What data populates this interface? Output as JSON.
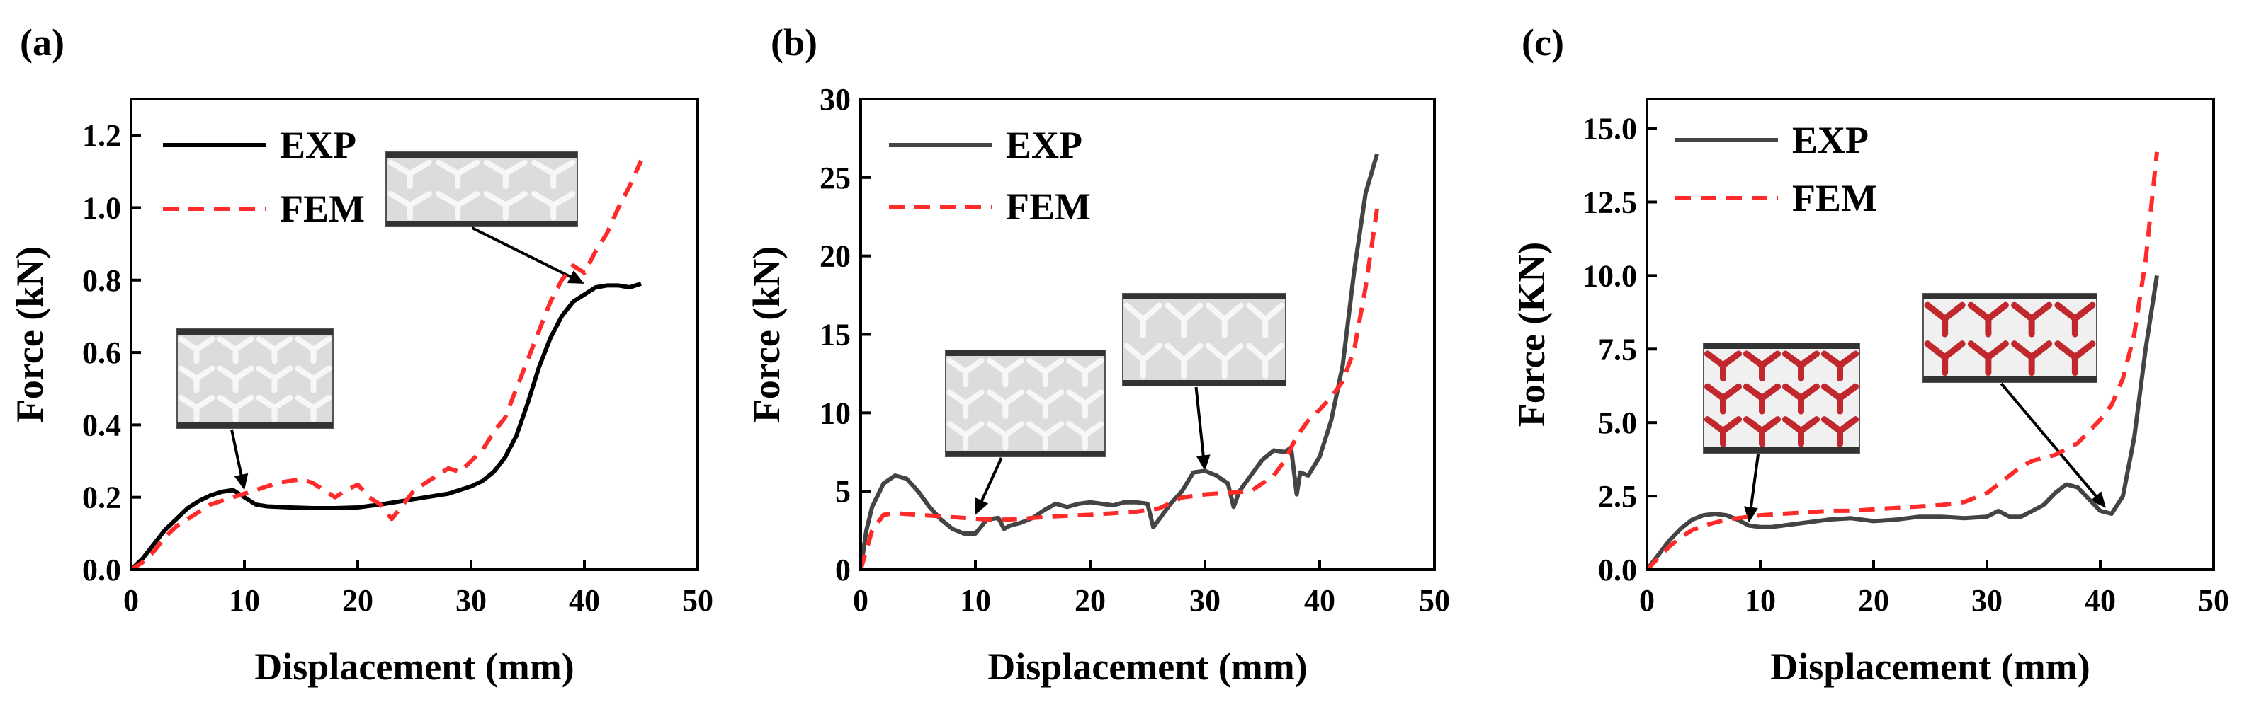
{
  "chart_data": [
    {
      "type": "line",
      "panel_label": "(a)",
      "xlabel": "Displacement (mm)",
      "ylabel": "Force (kN)",
      "xlim": [
        0,
        50
      ],
      "ylim": [
        0,
        1.3
      ],
      "xticks": [
        0,
        10,
        20,
        30,
        40,
        50
      ],
      "yticks": [
        0.0,
        0.2,
        0.4,
        0.6,
        0.8,
        1.0,
        1.2
      ],
      "ytick_labels": [
        "0.0",
        "0.2",
        "0.4",
        "0.6",
        "0.8",
        "1.0",
        "1.2"
      ],
      "legend_position": "top-left",
      "series": [
        {
          "name": "EXP",
          "color": "#000000",
          "dash": "solid",
          "x": [
            0,
            1,
            2,
            3,
            4,
            5,
            6,
            7,
            8,
            9,
            10,
            11,
            12,
            14,
            16,
            18,
            20,
            22,
            24,
            26,
            28,
            30,
            31,
            32,
            33,
            34,
            35,
            36,
            37,
            38,
            39,
            40,
            41,
            42,
            43,
            44,
            45
          ],
          "y": [
            0,
            0.03,
            0.07,
            0.11,
            0.14,
            0.17,
            0.19,
            0.205,
            0.215,
            0.22,
            0.2,
            0.18,
            0.175,
            0.172,
            0.17,
            0.17,
            0.172,
            0.18,
            0.19,
            0.2,
            0.21,
            0.23,
            0.245,
            0.27,
            0.31,
            0.37,
            0.46,
            0.56,
            0.64,
            0.7,
            0.74,
            0.76,
            0.78,
            0.785,
            0.785,
            0.78,
            0.79
          ]
        },
        {
          "name": "FEM",
          "color": "#ff2a2a",
          "dash": "dashed",
          "x": [
            0,
            1,
            2,
            3,
            4,
            5,
            6,
            7,
            8,
            9,
            10,
            11,
            12,
            13,
            14,
            15,
            16,
            17,
            18,
            19,
            20,
            21,
            22,
            23,
            24,
            25,
            26,
            27,
            28,
            29,
            30,
            31,
            32,
            33,
            34,
            35,
            36,
            37,
            38,
            39,
            40,
            41,
            42,
            43,
            44,
            45
          ],
          "y": [
            0,
            0.02,
            0.05,
            0.09,
            0.12,
            0.14,
            0.16,
            0.18,
            0.19,
            0.2,
            0.21,
            0.22,
            0.23,
            0.24,
            0.245,
            0.25,
            0.24,
            0.22,
            0.2,
            0.22,
            0.235,
            0.2,
            0.18,
            0.14,
            0.18,
            0.22,
            0.24,
            0.26,
            0.28,
            0.27,
            0.3,
            0.33,
            0.38,
            0.42,
            0.5,
            0.58,
            0.66,
            0.74,
            0.8,
            0.84,
            0.82,
            0.88,
            0.93,
            1.0,
            1.06,
            1.13
          ]
        }
      ],
      "insets": [
        {
          "description": "deformed lattice specimen",
          "arrow_target": [
            10,
            0.22
          ],
          "style": "white"
        },
        {
          "description": "compressed lattice specimen",
          "arrow_target": [
            40,
            0.79
          ],
          "style": "white"
        }
      ]
    },
    {
      "type": "line",
      "panel_label": "(b)",
      "xlabel": "Displacement (mm)",
      "ylabel": "Force (kN)",
      "xlim": [
        0,
        50
      ],
      "ylim": [
        0,
        30
      ],
      "xticks": [
        0,
        10,
        20,
        30,
        40,
        50
      ],
      "yticks": [
        0,
        5,
        10,
        15,
        20,
        25,
        30
      ],
      "ytick_labels": [
        "0",
        "5",
        "10",
        "15",
        "20",
        "25",
        "30"
      ],
      "legend_position": "top-left",
      "series": [
        {
          "name": "EXP",
          "color": "#444444",
          "dash": "solid",
          "x": [
            0,
            0.5,
            1,
            2,
            3,
            4,
            5,
            6,
            7,
            8,
            9,
            10,
            11,
            12,
            12.5,
            13,
            14,
            15,
            16,
            17,
            18,
            19,
            20,
            21,
            22,
            23,
            24,
            25,
            25.5,
            26,
            27,
            28,
            29,
            30,
            31,
            32,
            32.5,
            33,
            34,
            35,
            36,
            37,
            37.5,
            38,
            38.3,
            39,
            40,
            41,
            42,
            43,
            44,
            45
          ],
          "y": [
            0,
            2.5,
            4,
            5.5,
            6,
            5.8,
            5,
            4,
            3.2,
            2.6,
            2.3,
            2.3,
            3.2,
            3.3,
            2.6,
            2.8,
            3.0,
            3.3,
            3.8,
            4.2,
            4.0,
            4.2,
            4.3,
            4.2,
            4.1,
            4.3,
            4.3,
            4.2,
            2.7,
            3.2,
            4.2,
            5.0,
            6.2,
            6.3,
            6.0,
            5.5,
            4.0,
            5.0,
            6.0,
            7.0,
            7.6,
            7.5,
            7.8,
            4.8,
            6.2,
            6.0,
            7.2,
            9.5,
            13,
            19,
            24,
            26.5
          ]
        },
        {
          "name": "FEM",
          "color": "#ff2a2a",
          "dash": "dashed",
          "x": [
            0,
            1,
            2,
            3,
            5,
            7,
            9,
            11,
            13,
            15,
            17,
            20,
            22,
            24,
            26,
            28,
            30,
            32,
            34,
            36,
            37,
            38,
            39,
            40,
            41,
            42,
            43,
            44,
            45
          ],
          "y": [
            0,
            2.5,
            3.5,
            3.6,
            3.5,
            3.4,
            3.3,
            3.2,
            3.2,
            3.3,
            3.4,
            3.5,
            3.6,
            3.7,
            3.9,
            4.6,
            4.8,
            4.9,
            5.0,
            6.0,
            7.0,
            8.5,
            9.5,
            10.2,
            11.0,
            12.0,
            14.0,
            18.0,
            23.0
          ]
        }
      ],
      "insets": [
        {
          "description": "deformed lattice specimen",
          "arrow_target": [
            10,
            3.5
          ],
          "style": "white"
        },
        {
          "description": "compressed lattice specimen",
          "arrow_target": [
            30,
            6.3
          ],
          "style": "white"
        }
      ]
    },
    {
      "type": "line",
      "panel_label": "(c)",
      "xlabel": "Displacement (mm)",
      "ylabel": "Force (KN)",
      "xlim": [
        0,
        50
      ],
      "ylim": [
        0,
        16
      ],
      "xticks": [
        0,
        10,
        20,
        30,
        40,
        50
      ],
      "yticks": [
        0,
        2.5,
        5,
        7.5,
        10,
        12.5,
        15
      ],
      "ytick_labels": [
        "0.0",
        "2.5",
        "5.0",
        "7.5",
        "10.0",
        "12.5",
        "15.0"
      ],
      "legend_position": "top-left",
      "series": [
        {
          "name": "EXP",
          "color": "#444444",
          "dash": "solid",
          "x": [
            0,
            1,
            2,
            3,
            4,
            5,
            6,
            7,
            8,
            9,
            10,
            11,
            12,
            14,
            16,
            18,
            20,
            22,
            24,
            26,
            28,
            30,
            31,
            32,
            33,
            34,
            35,
            36,
            37,
            38,
            39,
            40,
            41,
            42,
            43,
            44,
            45
          ],
          "y": [
            0,
            0.5,
            1.0,
            1.4,
            1.7,
            1.85,
            1.9,
            1.85,
            1.7,
            1.5,
            1.45,
            1.45,
            1.5,
            1.6,
            1.7,
            1.75,
            1.65,
            1.7,
            1.8,
            1.8,
            1.75,
            1.8,
            2.0,
            1.8,
            1.8,
            2.0,
            2.2,
            2.6,
            2.9,
            2.8,
            2.4,
            2.0,
            1.9,
            2.5,
            4.5,
            7.5,
            10.0
          ]
        },
        {
          "name": "FEM",
          "color": "#ff2a2a",
          "dash": "dashed",
          "x": [
            0,
            1,
            2,
            3,
            4,
            5,
            6,
            7,
            8,
            9,
            10,
            12,
            14,
            16,
            18,
            20,
            22,
            24,
            26,
            28,
            30,
            31,
            32,
            33,
            34,
            35,
            36,
            37,
            38,
            39,
            40,
            41,
            42,
            43,
            44,
            45
          ],
          "y": [
            0,
            0.4,
            0.8,
            1.1,
            1.35,
            1.5,
            1.6,
            1.7,
            1.75,
            1.8,
            1.85,
            1.9,
            1.95,
            2.0,
            2.0,
            2.05,
            2.1,
            2.15,
            2.2,
            2.3,
            2.6,
            2.9,
            3.2,
            3.5,
            3.7,
            3.8,
            3.9,
            4.1,
            4.3,
            4.7,
            5.1,
            5.6,
            6.5,
            8.0,
            10.5,
            14.2
          ]
        }
      ],
      "insets": [
        {
          "description": "deformed red lattice specimen",
          "arrow_target": [
            9,
            1.6
          ],
          "style": "red"
        },
        {
          "description": "compressed red lattice specimen",
          "arrow_target": [
            40.5,
            2.1
          ],
          "style": "red"
        }
      ]
    }
  ]
}
